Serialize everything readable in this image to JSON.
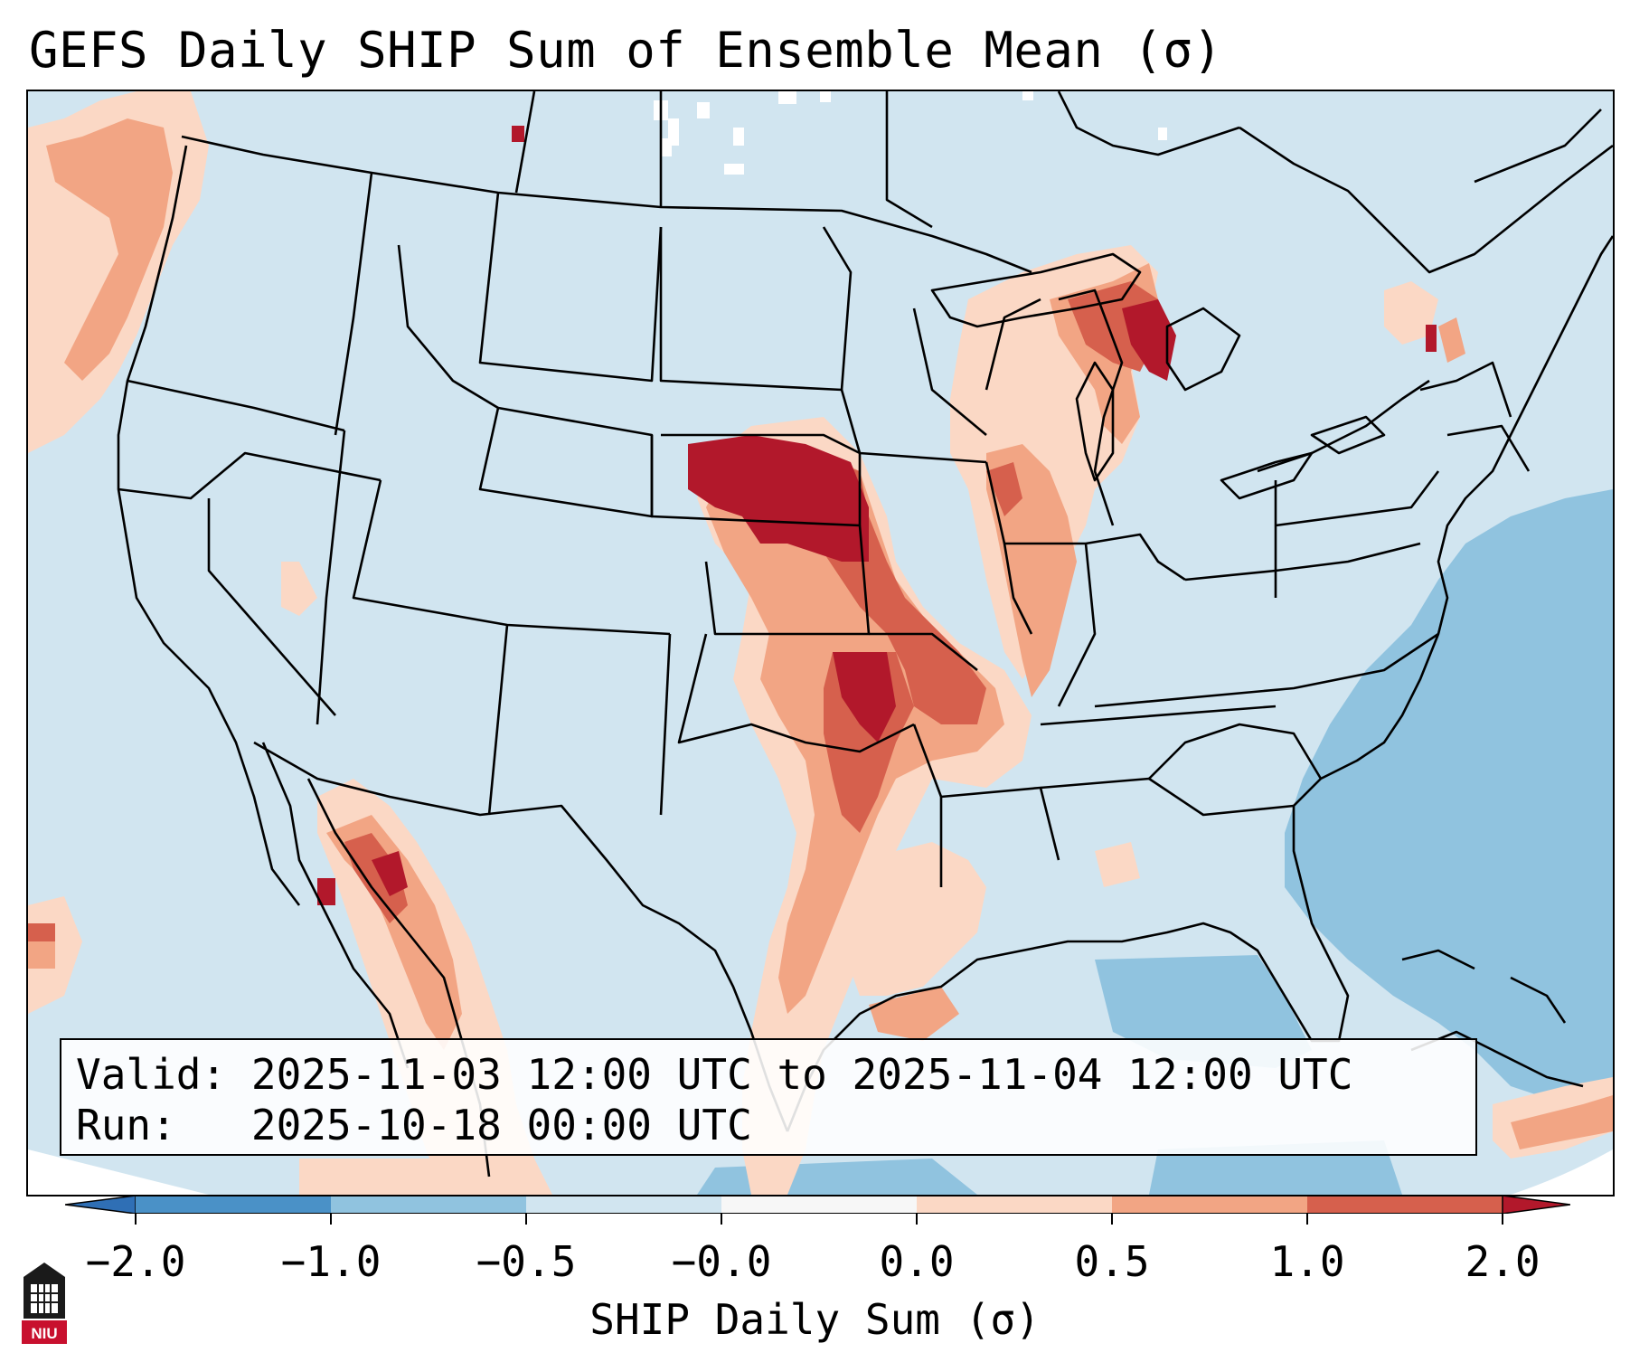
{
  "title": "GEFS Daily SHIP Sum of Ensemble Mean (σ)",
  "info": {
    "valid_label": "Valid:",
    "valid_value": "2025-11-03 12:00 UTC to 2025-11-04 12:00 UTC",
    "run_label": "Run:",
    "run_value": "2025-10-18 00:00 UTC"
  },
  "colorbar": {
    "label": "SHIP Daily Sum (σ)",
    "ticks": [
      "−2.0",
      "−1.0",
      "−0.5",
      "−0.0",
      "0.0",
      "0.5",
      "1.0",
      "2.0"
    ],
    "colors": {
      "extend_low": "#2f6fb5",
      "neg_2_to_1": "#4a91c7",
      "neg_1_to_05": "#90c3df",
      "neg_05_to_0": "#d1e5f0",
      "zero_band": "#f7f7f7",
      "pos_0_to_05": "#fbd8c5",
      "pos_05_to_1": "#f2a584",
      "pos_1_to_2": "#d6604d",
      "extend_high": "#b2182b"
    }
  },
  "logo": {
    "text": "NIU"
  }
}
